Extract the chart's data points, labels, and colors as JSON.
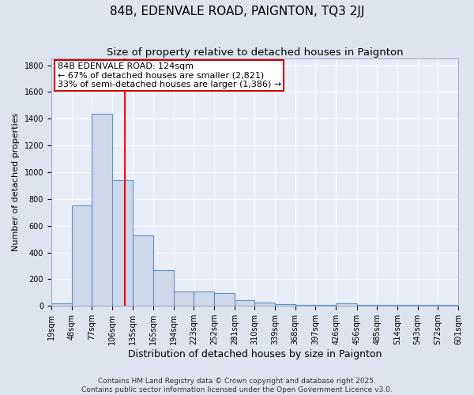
{
  "title": "84B, EDENVALE ROAD, PAIGNTON, TQ3 2JJ",
  "subtitle": "Size of property relative to detached houses in Paignton",
  "xlabel": "Distribution of detached houses by size in Paignton",
  "ylabel": "Number of detached properties",
  "bar_color": "#cdd8ea",
  "bar_edge_color": "#6090c0",
  "fig_bg_color": "#dde4f0",
  "ax_bg_color": "#e8edf8",
  "grid_color": "#ffffff",
  "bins": [
    19,
    48,
    77,
    106,
    135,
    165,
    194,
    223,
    252,
    281,
    310,
    339,
    368,
    397,
    426,
    456,
    485,
    514,
    543,
    572,
    601
  ],
  "values": [
    20,
    750,
    1440,
    940,
    530,
    265,
    110,
    110,
    95,
    40,
    25,
    15,
    10,
    5,
    20,
    5,
    5,
    5,
    5,
    5
  ],
  "red_line_x": 124,
  "annotation_line1": "84B EDENVALE ROAD: 124sqm",
  "annotation_line2": "← 67% of detached houses are smaller (2,821)",
  "annotation_line3": "33% of semi-detached houses are larger (1,386) →",
  "annotation_box_color": "#ffffff",
  "annotation_border_color": "#cc0000",
  "ylim": [
    0,
    1850
  ],
  "yticks": [
    0,
    200,
    400,
    600,
    800,
    1000,
    1200,
    1400,
    1600,
    1800
  ],
  "title_fontsize": 11,
  "subtitle_fontsize": 9.5,
  "xlabel_fontsize": 9,
  "ylabel_fontsize": 8,
  "tick_fontsize": 7,
  "annotation_fontsize": 8,
  "footer_fontsize": 6.5
}
